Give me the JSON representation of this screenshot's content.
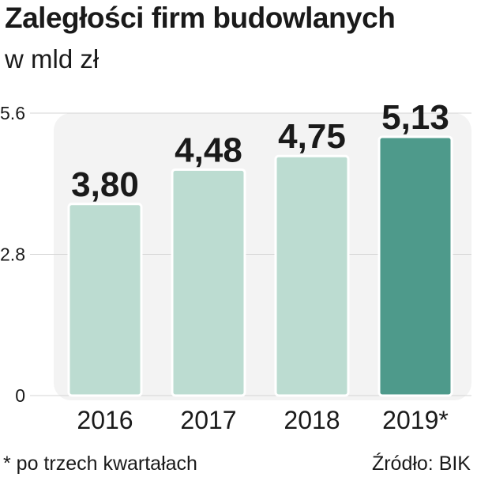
{
  "header": {
    "title": "Zaległości firm budowlanych",
    "subtitle": "w mld zł"
  },
  "footer": {
    "note": "* po trzech kwartałach",
    "source": "Źródło: BIK"
  },
  "colors": {
    "bar_default": "#bcdcd1",
    "bar_highlight": "#4e9a8b",
    "plot_background": "#f3f3f3",
    "text": "#1a1a1a"
  },
  "chart_data": {
    "type": "bar",
    "categories": [
      "2016",
      "2017",
      "2018",
      "2019*"
    ],
    "values": [
      3.8,
      4.48,
      4.75,
      5.13
    ],
    "value_labels": [
      "3,80",
      "4,48",
      "4,75",
      "5,13"
    ],
    "highlight_index": 3,
    "ylim": [
      0,
      5.6
    ],
    "yticks": [
      0,
      2.8,
      5.6
    ],
    "ytick_labels": [
      "0",
      "2.8",
      "5.6"
    ],
    "title": "Zaległości firm budowlanych",
    "subtitle": "w mld zł",
    "xlabel": "",
    "ylabel": "",
    "grid": true
  }
}
